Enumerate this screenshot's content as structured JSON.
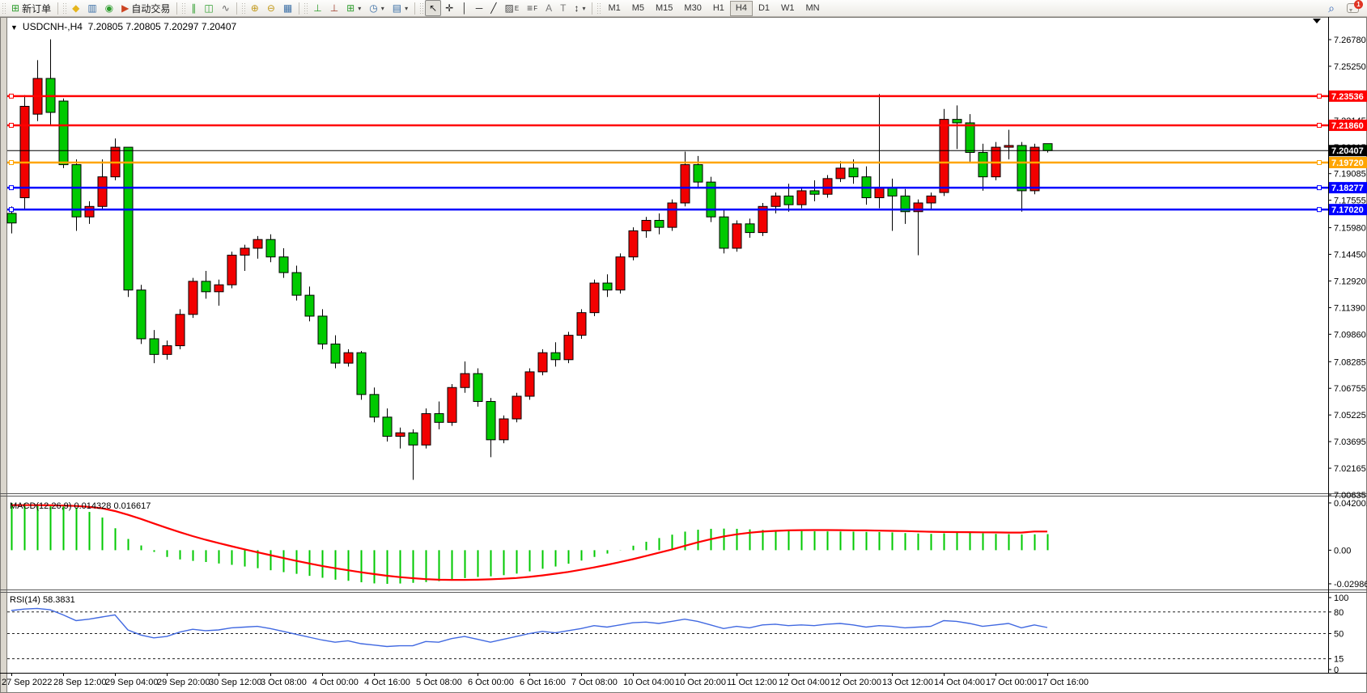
{
  "toolbar": {
    "groups": [
      {
        "items": [
          {
            "name": "new-order-button",
            "glyph": "⊞",
            "color": "#2e9e2e",
            "label": "新订单"
          }
        ]
      },
      {
        "items": [
          {
            "name": "metaeditor-button",
            "glyph": "◆",
            "color": "#e5b51c"
          },
          {
            "name": "terminal-button",
            "glyph": "▥",
            "color": "#3a6ea5"
          },
          {
            "name": "alerts-button",
            "glyph": "◉",
            "color": "#2f9e2f"
          },
          {
            "name": "autotrading-button",
            "glyph": "▶",
            "color": "#cc4422",
            "label": "自动交易"
          }
        ]
      },
      {
        "items": [
          {
            "name": "bar-chart-button",
            "glyph": "∥",
            "color": "#2e9e2e"
          },
          {
            "name": "candlestick-chart-button",
            "glyph": "◫",
            "color": "#2e9e2e"
          },
          {
            "name": "line-chart-button",
            "glyph": "∿",
            "color": "#666666"
          }
        ]
      },
      {
        "items": [
          {
            "name": "zoom-in-button",
            "glyph": "⊕",
            "color": "#c2991a"
          },
          {
            "name": "zoom-out-button",
            "glyph": "⊖",
            "color": "#c2991a"
          },
          {
            "name": "tile-windows-button",
            "glyph": "▦",
            "color": "#3a6ea5"
          }
        ]
      },
      {
        "items": [
          {
            "name": "indicators-window-button",
            "glyph": "⊥",
            "color": "#2e9e2e"
          },
          {
            "name": "data-window-button",
            "glyph": "⊥",
            "color": "#a04030"
          },
          {
            "name": "add-chart-button",
            "glyph": "⊞",
            "color": "#2e9e2e",
            "dropdown": true
          },
          {
            "name": "periods-button",
            "glyph": "◷",
            "color": "#3a6ea5",
            "dropdown": true
          },
          {
            "name": "templates-button",
            "glyph": "▤",
            "color": "#3a6ea5",
            "dropdown": true
          }
        ]
      },
      {
        "items": [
          {
            "name": "cursor-button",
            "glyph": "↖",
            "color": "#222222",
            "active": true
          },
          {
            "name": "crosshair-button",
            "glyph": "✛",
            "color": "#222222"
          },
          {
            "name": "vertical-line-button",
            "glyph": "│",
            "color": "#222222"
          },
          {
            "name": "horizontal-line-button",
            "glyph": "─",
            "color": "#222222"
          },
          {
            "name": "trendline-button",
            "glyph": "╱",
            "color": "#222222"
          },
          {
            "name": "channel-button",
            "glyph": "▨",
            "color": "#444444",
            "sub": "E"
          },
          {
            "name": "fibonacci-button",
            "glyph": "≡",
            "color": "#444444",
            "sub": "F"
          },
          {
            "name": "text-button",
            "glyph": "A",
            "color": "#777777"
          },
          {
            "name": "text-label-button",
            "glyph": "T",
            "color": "#777777"
          },
          {
            "name": "arrows-button",
            "glyph": "↕",
            "color": "#222222",
            "dropdown": true
          }
        ]
      }
    ],
    "timeframes": [
      "M1",
      "M5",
      "M15",
      "M30",
      "H1",
      "H4",
      "D1",
      "W1",
      "MN"
    ],
    "active_timeframe": "H4",
    "right": [
      {
        "name": "search-button",
        "glyph": "⌕",
        "color": "#2a5fb4"
      },
      {
        "name": "notifications-button",
        "type": "bubble",
        "badge": "1"
      }
    ]
  },
  "chart": {
    "title": {
      "symbol": "USDCNH-,H4",
      "open": "7.20805",
      "high": "7.20805",
      "low": "7.20297",
      "close": "7.20407"
    },
    "price_axis_ticks": [
      "7.26780",
      "7.25250",
      "7.22145",
      "7.20615",
      "7.19085",
      "7.17555",
      "7.15980",
      "7.14450",
      "7.12920",
      "7.11390",
      "7.09860",
      "7.08285",
      "7.06755",
      "7.05225",
      "7.03695",
      "7.02165",
      "7.00635"
    ],
    "levels": [
      {
        "price": 7.23536,
        "label": "7.23536",
        "color": "#ff0000"
      },
      {
        "price": 7.2186,
        "label": "7.21860",
        "color": "#ff0000"
      },
      {
        "price": 7.1972,
        "label": "7.19720",
        "color": "#ffa500"
      },
      {
        "price": 7.18277,
        "label": "7.18277",
        "color": "#0000ff"
      },
      {
        "price": 7.1702,
        "label": "7.17020",
        "color": "#0000ff"
      }
    ],
    "current_price": {
      "price": 7.20407,
      "label": "7.20407",
      "color": "#000000"
    },
    "time_labels": [
      "27 Sep 2022",
      "28 Sep 12:00",
      "29 Sep 04:00",
      "29 Sep 20:00",
      "30 Sep 12:00",
      "3 Oct 08:00",
      "4 Oct 00:00",
      "4 Oct 16:00",
      "5 Oct 08:00",
      "6 Oct 00:00",
      "6 Oct 16:00",
      "7 Oct 08:00",
      "10 Oct 04:00",
      "10 Oct 20:00",
      "11 Oct 12:00",
      "12 Oct 04:00",
      "12 Oct 20:00",
      "13 Oct 12:00",
      "14 Oct 04:00",
      "17 Oct 00:00",
      "17 Oct 16:00"
    ],
    "colors": {
      "bull": "#f20000",
      "bear": "#00ca00",
      "wick": "#000000",
      "macd_hist": "#00c800",
      "macd_signal": "#ff0000",
      "rsi_line": "#4169e1"
    }
  },
  "chart_data": {
    "type": "candlestick+indicators",
    "symbol": "USDCNH",
    "period": "H4",
    "price_range": {
      "top": 7.2678,
      "bottom": 7.00635
    },
    "candles_ohlc": [
      [
        7.168,
        7.172,
        7.1565,
        7.1625
      ],
      [
        7.177,
        7.236,
        7.17,
        7.2295
      ],
      [
        7.225,
        7.256,
        7.221,
        7.2455
      ],
      [
        7.2455,
        7.268,
        7.219,
        7.226
      ],
      [
        7.2325,
        7.234,
        7.194,
        7.196
      ],
      [
        7.196,
        7.199,
        7.158,
        7.166
      ],
      [
        7.166,
        7.175,
        7.162,
        7.172
      ],
      [
        7.172,
        7.199,
        7.17,
        7.189
      ],
      [
        7.189,
        7.211,
        7.187,
        7.206
      ],
      [
        7.206,
        7.206,
        7.12,
        7.124
      ],
      [
        7.124,
        7.127,
        7.093,
        7.096
      ],
      [
        7.096,
        7.101,
        7.082,
        7.087
      ],
      [
        7.087,
        7.095,
        7.084,
        7.092
      ],
      [
        7.092,
        7.113,
        7.09,
        7.11
      ],
      [
        7.11,
        7.131,
        7.108,
        7.129
      ],
      [
        7.129,
        7.135,
        7.119,
        7.123
      ],
      [
        7.123,
        7.13,
        7.115,
        7.127
      ],
      [
        7.127,
        7.146,
        7.125,
        7.144
      ],
      [
        7.144,
        7.15,
        7.135,
        7.148
      ],
      [
        7.148,
        7.155,
        7.142,
        7.153
      ],
      [
        7.153,
        7.156,
        7.14,
        7.143
      ],
      [
        7.143,
        7.148,
        7.131,
        7.134
      ],
      [
        7.134,
        7.138,
        7.118,
        7.121
      ],
      [
        7.121,
        7.126,
        7.106,
        7.109
      ],
      [
        7.109,
        7.113,
        7.09,
        7.093
      ],
      [
        7.093,
        7.098,
        7.079,
        7.082
      ],
      [
        7.082,
        7.09,
        7.08,
        7.088
      ],
      [
        7.088,
        7.089,
        7.061,
        7.064
      ],
      [
        7.064,
        7.068,
        7.048,
        7.051
      ],
      [
        7.051,
        7.056,
        7.037,
        7.04
      ],
      [
        7.04,
        7.045,
        7.033,
        7.042
      ],
      [
        7.042,
        7.044,
        7.015,
        7.035
      ],
      [
        7.035,
        7.056,
        7.033,
        7.053
      ],
      [
        7.053,
        7.06,
        7.044,
        7.048
      ],
      [
        7.048,
        7.07,
        7.046,
        7.068
      ],
      [
        7.068,
        7.083,
        7.065,
        7.076
      ],
      [
        7.076,
        7.079,
        7.057,
        7.06
      ],
      [
        7.06,
        7.062,
        7.028,
        7.038
      ],
      [
        7.038,
        7.052,
        7.036,
        7.05
      ],
      [
        7.05,
        7.065,
        7.048,
        7.063
      ],
      [
        7.063,
        7.079,
        7.061,
        7.077
      ],
      [
        7.077,
        7.09,
        7.075,
        7.088
      ],
      [
        7.088,
        7.094,
        7.08,
        7.084
      ],
      [
        7.084,
        7.1,
        7.082,
        7.098
      ],
      [
        7.098,
        7.113,
        7.096,
        7.111
      ],
      [
        7.111,
        7.13,
        7.109,
        7.128
      ],
      [
        7.128,
        7.133,
        7.12,
        7.124
      ],
      [
        7.124,
        7.145,
        7.122,
        7.143
      ],
      [
        7.143,
        7.16,
        7.141,
        7.158
      ],
      [
        7.158,
        7.166,
        7.154,
        7.164
      ],
      [
        7.164,
        7.168,
        7.156,
        7.16
      ],
      [
        7.16,
        7.176,
        7.158,
        7.174
      ],
      [
        7.174,
        7.2035,
        7.172,
        7.196
      ],
      [
        7.196,
        7.201,
        7.183,
        7.186
      ],
      [
        7.186,
        7.189,
        7.163,
        7.166
      ],
      [
        7.166,
        7.17,
        7.145,
        7.148
      ],
      [
        7.148,
        7.164,
        7.146,
        7.162
      ],
      [
        7.162,
        7.165,
        7.154,
        7.157
      ],
      [
        7.157,
        7.174,
        7.155,
        7.172
      ],
      [
        7.172,
        7.18,
        7.168,
        7.178
      ],
      [
        7.178,
        7.185,
        7.169,
        7.173
      ],
      [
        7.173,
        7.183,
        7.171,
        7.181
      ],
      [
        7.181,
        7.187,
        7.175,
        7.179
      ],
      [
        7.179,
        7.19,
        7.177,
        7.188
      ],
      [
        7.188,
        7.198,
        7.186,
        7.194
      ],
      [
        7.194,
        7.199,
        7.185,
        7.189
      ],
      [
        7.189,
        7.195,
        7.173,
        7.177
      ],
      [
        7.177,
        7.2365,
        7.171,
        7.183
      ],
      [
        7.183,
        7.188,
        7.158,
        7.178
      ],
      [
        7.178,
        7.182,
        7.162,
        7.169
      ],
      [
        7.169,
        7.176,
        7.144,
        7.174
      ],
      [
        7.174,
        7.18,
        7.17,
        7.178
      ],
      [
        7.18,
        7.228,
        7.178,
        7.222
      ],
      [
        7.222,
        7.23,
        7.205,
        7.22
      ],
      [
        7.22,
        7.225,
        7.197,
        7.203
      ],
      [
        7.203,
        7.208,
        7.181,
        7.189
      ],
      [
        7.189,
        7.209,
        7.187,
        7.206
      ],
      [
        7.206,
        7.216,
        7.199,
        7.207
      ],
      [
        7.207,
        7.209,
        7.169,
        7.181
      ],
      [
        7.181,
        7.208,
        7.179,
        7.206
      ],
      [
        7.20805,
        7.20805,
        7.20297,
        7.20407
      ]
    ],
    "macd": {
      "label": "MACD(12,26,9)",
      "macd_value": "0.014328",
      "signal_value": "0.016617",
      "axis_labels": [
        "0.042001",
        "0.00",
        "-0.029864"
      ],
      "range": [
        -0.029864,
        0.042001
      ],
      "histogram": [
        0.042,
        0.0415,
        0.0408,
        0.04,
        0.039,
        0.0378,
        0.034,
        0.029,
        0.0195,
        0.01,
        0.0042,
        -0.0015,
        -0.006,
        -0.0082,
        -0.0095,
        -0.0105,
        -0.0118,
        -0.013,
        -0.0145,
        -0.016,
        -0.0178,
        -0.0195,
        -0.021,
        -0.0228,
        -0.0245,
        -0.0262,
        -0.0272,
        -0.0285,
        -0.0295,
        -0.0299,
        -0.0296,
        -0.029,
        -0.0283,
        -0.0275,
        -0.0262,
        -0.0248,
        -0.0238,
        -0.0232,
        -0.0222,
        -0.0208,
        -0.0188,
        -0.0165,
        -0.0145,
        -0.012,
        -0.0092,
        -0.006,
        -0.003,
        0.0002,
        0.004,
        0.0075,
        0.0108,
        0.0138,
        0.0165,
        0.0182,
        0.019,
        0.0192,
        0.019,
        0.0185,
        0.018,
        0.0176,
        0.0172,
        0.017,
        0.0168,
        0.0167,
        0.0166,
        0.0165,
        0.0163,
        0.0162,
        0.0158,
        0.0152,
        0.0148,
        0.0145,
        0.015,
        0.0155,
        0.0155,
        0.015,
        0.0145,
        0.0143,
        0.014,
        0.0141,
        0.0143
      ],
      "signal": [
        0.04,
        0.04,
        0.04,
        0.0399,
        0.0397,
        0.0393,
        0.0385,
        0.0372,
        0.0348,
        0.0315,
        0.0278,
        0.0238,
        0.0198,
        0.016,
        0.0125,
        0.0093,
        0.0063,
        0.0035,
        0.0008,
        -0.0018,
        -0.0044,
        -0.007,
        -0.0095,
        -0.0118,
        -0.014,
        -0.016,
        -0.0178,
        -0.0196,
        -0.0212,
        -0.0227,
        -0.0239,
        -0.0249,
        -0.0257,
        -0.0262,
        -0.0264,
        -0.0264,
        -0.0262,
        -0.0259,
        -0.0254,
        -0.0247,
        -0.0237,
        -0.0224,
        -0.0209,
        -0.0193,
        -0.0174,
        -0.0153,
        -0.013,
        -0.0106,
        -0.008,
        -0.0052,
        -0.0023,
        0.0006,
        0.0038,
        0.007,
        0.0098,
        0.0122,
        0.0141,
        0.0155,
        0.0165,
        0.0172,
        0.0176,
        0.0178,
        0.0179,
        0.0179,
        0.0178,
        0.0177,
        0.0176,
        0.0174,
        0.0172,
        0.017,
        0.0167,
        0.0164,
        0.0162,
        0.0161,
        0.016,
        0.0159,
        0.0158,
        0.0157,
        0.0157,
        0.0166,
        0.0166
      ]
    },
    "rsi": {
      "label": "RSI(14)",
      "value": "58.3831",
      "axis_labels": [
        "100",
        "80",
        "50",
        "15",
        "0"
      ],
      "dashed_levels": [
        80,
        50,
        15
      ],
      "series": [
        82,
        84,
        85,
        83,
        76,
        68,
        70,
        73,
        76,
        55,
        48,
        44,
        46,
        52,
        56,
        54,
        55,
        58,
        59,
        60,
        57,
        53,
        49,
        45,
        41,
        38,
        40,
        36,
        34,
        32,
        33,
        33,
        39,
        38,
        43,
        46,
        42,
        38,
        42,
        46,
        50,
        53,
        51,
        54,
        57,
        61,
        59,
        62,
        65,
        66,
        64,
        67,
        70,
        67,
        62,
        57,
        60,
        58,
        62,
        63,
        61,
        62,
        61,
        63,
        64,
        62,
        59,
        61,
        60,
        58,
        59,
        60,
        68,
        67,
        64,
        60,
        62,
        64,
        58,
        62,
        58.3831
      ]
    }
  }
}
